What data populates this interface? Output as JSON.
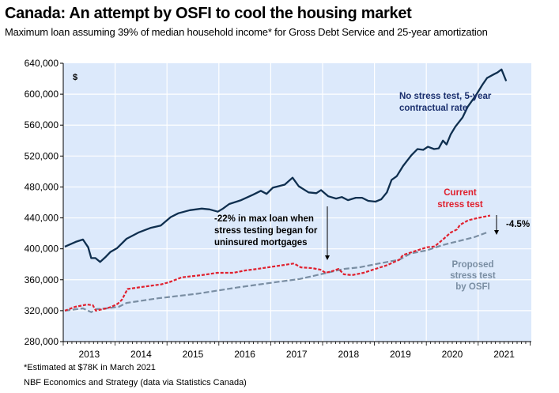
{
  "title": "Canada: An attempt by OSFI to cool the housing market",
  "subtitle": "Maximum loan assuming 39% of median household income* for Gross Debt Service and 25-year amortization",
  "footnotes": [
    "*Estimated at $78K in March 2021",
    "NBF Economics and Strategy (data via Statistics Canada)"
  ],
  "colors": {
    "plot_bg": "#dce9fb",
    "grid": "#ffffff",
    "no_stress": "#0f2f4f",
    "current": "#e0202e",
    "proposed": "#7a8ea3",
    "label_no_stress": "#1a2f6e",
    "label_current": "#e0202e",
    "label_proposed": "#7a8ea3"
  },
  "chart_data": {
    "type": "line",
    "title": "Canada: An attempt by OSFI to cool the housing market",
    "ylabel": "$",
    "xlabel": "",
    "ylim": [
      280000,
      640000
    ],
    "xlim": [
      2013.0,
      2022.0
    ],
    "yticks": [
      "280,000",
      "320,000",
      "360,000",
      "400,000",
      "440,000",
      "480,000",
      "520,000",
      "560,000",
      "600,000",
      "640,000"
    ],
    "ytick_values": [
      280000,
      320000,
      360000,
      400000,
      440000,
      480000,
      520000,
      560000,
      600000,
      640000
    ],
    "xticks": [
      "2013",
      "2014",
      "2015",
      "2016",
      "2017",
      "2018",
      "2019",
      "2020",
      "2021"
    ],
    "grid": true,
    "series": [
      {
        "name": "No stress test, 5-year contractual rate",
        "style": "solid",
        "points": [
          [
            2013.03,
            402800
          ],
          [
            2013.24,
            409000
          ],
          [
            2013.38,
            412000
          ],
          [
            2013.48,
            402000
          ],
          [
            2013.54,
            388000
          ],
          [
            2013.62,
            388000
          ],
          [
            2013.71,
            383000
          ],
          [
            2013.81,
            389000
          ],
          [
            2013.91,
            396000
          ],
          [
            2014.04,
            401000
          ],
          [
            2014.22,
            413000
          ],
          [
            2014.45,
            421000
          ],
          [
            2014.68,
            427000
          ],
          [
            2014.88,
            430000
          ],
          [
            2015.07,
            441000
          ],
          [
            2015.22,
            446000
          ],
          [
            2015.44,
            450000
          ],
          [
            2015.67,
            452000
          ],
          [
            2015.82,
            451000
          ],
          [
            2015.98,
            448000
          ],
          [
            2016.08,
            452000
          ],
          [
            2016.2,
            458000
          ],
          [
            2016.43,
            463000
          ],
          [
            2016.66,
            470000
          ],
          [
            2016.81,
            475000
          ],
          [
            2016.92,
            471000
          ],
          [
            2017.04,
            479000
          ],
          [
            2017.27,
            483000
          ],
          [
            2017.42,
            492000
          ],
          [
            2017.54,
            481000
          ],
          [
            2017.73,
            473000
          ],
          [
            2017.88,
            472000
          ],
          [
            2017.97,
            476000
          ],
          [
            2018.11,
            468000
          ],
          [
            2018.26,
            465000
          ],
          [
            2018.37,
            467000
          ],
          [
            2018.49,
            463000
          ],
          [
            2018.64,
            466000
          ],
          [
            2018.76,
            466000
          ],
          [
            2018.88,
            462000
          ],
          [
            2019.02,
            461000
          ],
          [
            2019.13,
            464000
          ],
          [
            2019.24,
            473000
          ],
          [
            2019.33,
            489000
          ],
          [
            2019.43,
            494000
          ],
          [
            2019.55,
            507000
          ],
          [
            2019.71,
            521000
          ],
          [
            2019.83,
            529000
          ],
          [
            2019.94,
            528000
          ],
          [
            2020.03,
            532000
          ],
          [
            2020.15,
            529000
          ],
          [
            2020.24,
            530000
          ],
          [
            2020.32,
            540000
          ],
          [
            2020.39,
            535000
          ],
          [
            2020.47,
            548000
          ],
          [
            2020.56,
            558000
          ],
          [
            2020.7,
            570000
          ],
          [
            2020.8,
            584000
          ],
          [
            2020.96,
            599000
          ],
          [
            2021.08,
            612000
          ],
          [
            2021.17,
            621000
          ],
          [
            2021.31,
            626000
          ],
          [
            2021.37,
            628000
          ],
          [
            2021.45,
            632000
          ],
          [
            2021.54,
            617000
          ]
        ]
      },
      {
        "name": "Current stress test",
        "style": "dashed",
        "points": [
          [
            2013.03,
            320000
          ],
          [
            2013.23,
            325000
          ],
          [
            2013.46,
            328000
          ],
          [
            2013.57,
            327000
          ],
          [
            2013.63,
            320000
          ],
          [
            2013.83,
            323000
          ],
          [
            2013.93,
            325000
          ],
          [
            2014.05,
            329000
          ],
          [
            2014.13,
            334000
          ],
          [
            2014.24,
            348000
          ],
          [
            2014.44,
            350000
          ],
          [
            2014.66,
            352000
          ],
          [
            2014.89,
            354000
          ],
          [
            2015.05,
            357000
          ],
          [
            2015.28,
            363000
          ],
          [
            2015.67,
            366000
          ],
          [
            2015.97,
            369000
          ],
          [
            2016.28,
            369000
          ],
          [
            2016.51,
            372000
          ],
          [
            2016.74,
            374000
          ],
          [
            2017.04,
            377000
          ],
          [
            2017.45,
            381000
          ],
          [
            2017.58,
            376000
          ],
          [
            2017.8,
            375000
          ],
          [
            2017.96,
            373000
          ],
          [
            2018.06,
            369000
          ],
          [
            2018.18,
            371000
          ],
          [
            2018.31,
            374000
          ],
          [
            2018.41,
            367000
          ],
          [
            2018.57,
            366000
          ],
          [
            2018.79,
            369000
          ],
          [
            2019.02,
            374000
          ],
          [
            2019.25,
            379000
          ],
          [
            2019.48,
            386000
          ],
          [
            2019.55,
            392000
          ],
          [
            2019.78,
            397000
          ],
          [
            2020.01,
            402000
          ],
          [
            2020.16,
            403000
          ],
          [
            2020.32,
            412000
          ],
          [
            2020.47,
            421000
          ],
          [
            2020.59,
            425000
          ],
          [
            2020.65,
            431000
          ],
          [
            2020.81,
            437000
          ],
          [
            2021.0,
            440000
          ],
          [
            2021.23,
            443000
          ]
        ]
      },
      {
        "name": "Proposed stress test by OSFI",
        "style": "dashed",
        "points": [
          [
            2013.03,
            320000
          ],
          [
            2013.38,
            323000
          ],
          [
            2013.54,
            318000
          ],
          [
            2013.64,
            322000
          ],
          [
            2013.83,
            323000
          ],
          [
            2014.07,
            325000
          ],
          [
            2014.22,
            330000
          ],
          [
            2014.83,
            336000
          ],
          [
            2015.59,
            342000
          ],
          [
            2016.35,
            350000
          ],
          [
            2017.11,
            357000
          ],
          [
            2017.56,
            361000
          ],
          [
            2018.02,
            368000
          ],
          [
            2018.41,
            374000
          ],
          [
            2018.71,
            376000
          ],
          [
            2019.09,
            381000
          ],
          [
            2019.48,
            386000
          ],
          [
            2019.7,
            394000
          ],
          [
            2020.01,
            398000
          ],
          [
            2020.32,
            405000
          ],
          [
            2020.62,
            410000
          ],
          [
            2020.92,
            415000
          ],
          [
            2021.2,
            422000
          ]
        ]
      }
    ],
    "annotations": {
      "unit": "$",
      "no_stress_label": [
        "No stress test, 5-year",
        "contractual rate"
      ],
      "current_label": [
        "Current",
        "stress test"
      ],
      "proposed_label": [
        "Proposed",
        "stress test",
        "by OSFI"
      ],
      "drop_label": [
        "-22% in max loan when",
        "stress testing began for",
        "uninsured mortgages"
      ],
      "gap_label": "-4.5%"
    }
  }
}
